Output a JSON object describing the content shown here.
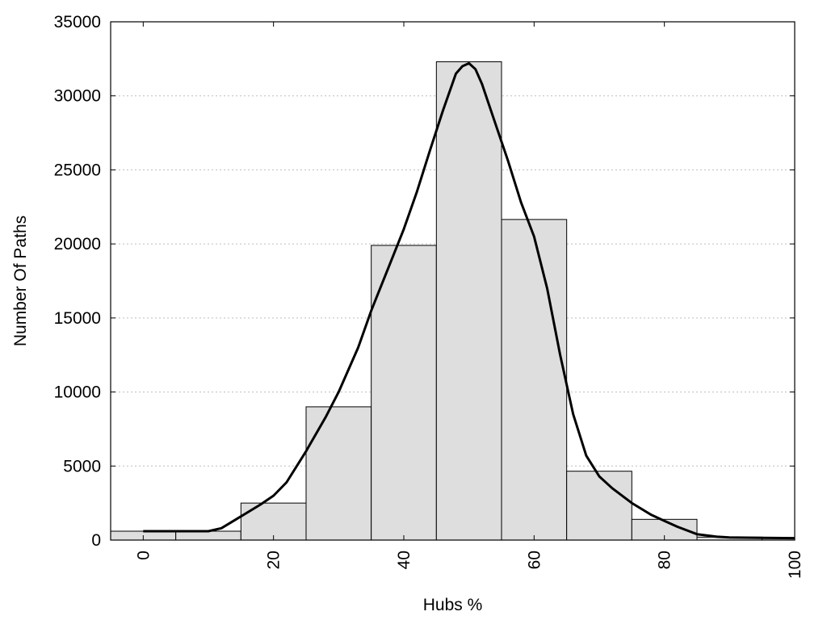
{
  "chart_data": {
    "type": "bar",
    "xlabel": "Hubs %",
    "ylabel": "Number Of Paths",
    "xlim": [
      -5,
      100
    ],
    "ylim": [
      0,
      35000
    ],
    "grid": true,
    "x_ticks": [
      0,
      20,
      40,
      60,
      80,
      100
    ],
    "x_tick_labels": [
      "0",
      "20",
      "40",
      "60",
      "80",
      "100"
    ],
    "y_ticks": [
      0,
      5000,
      10000,
      15000,
      20000,
      25000,
      30000,
      35000
    ],
    "y_tick_labels": [
      "0",
      "5000",
      "10000",
      "15000",
      "20000",
      "25000",
      "30000",
      "35000"
    ],
    "bars": [
      {
        "x0": -5,
        "x1": 5,
        "value": 600
      },
      {
        "x0": 5,
        "x1": 15,
        "value": 600
      },
      {
        "x0": 15,
        "x1": 25,
        "value": 2500
      },
      {
        "x0": 25,
        "x1": 35,
        "value": 9000
      },
      {
        "x0": 35,
        "x1": 45,
        "value": 19900
      },
      {
        "x0": 45,
        "x1": 55,
        "value": 32300
      },
      {
        "x0": 55,
        "x1": 65,
        "value": 21650
      },
      {
        "x0": 65,
        "x1": 75,
        "value": 4650
      },
      {
        "x0": 75,
        "x1": 85,
        "value": 1400
      },
      {
        "x0": 85,
        "x1": 95,
        "value": 200
      },
      {
        "x0": 95,
        "x1": 100,
        "value": 150
      }
    ],
    "curve": {
      "x": [
        0,
        5,
        10,
        12,
        15,
        18,
        20,
        22,
        25,
        28,
        30,
        33,
        35,
        38,
        40,
        42,
        44,
        46,
        48,
        49,
        50,
        51,
        52,
        54,
        56,
        58,
        60,
        62,
        64,
        66,
        68,
        70,
        72,
        75,
        78,
        80,
        82,
        85,
        88,
        90,
        95,
        100
      ],
      "y": [
        600,
        600,
        600,
        800,
        1600,
        2400,
        3000,
        3900,
        6000,
        8300,
        10000,
        13000,
        15500,
        18800,
        21000,
        23500,
        26300,
        29000,
        31500,
        32000,
        32200,
        31800,
        30800,
        28200,
        25600,
        22800,
        20500,
        17000,
        12500,
        8500,
        5700,
        4300,
        3500,
        2500,
        1700,
        1300,
        900,
        400,
        230,
        180,
        150,
        130
      ]
    }
  }
}
